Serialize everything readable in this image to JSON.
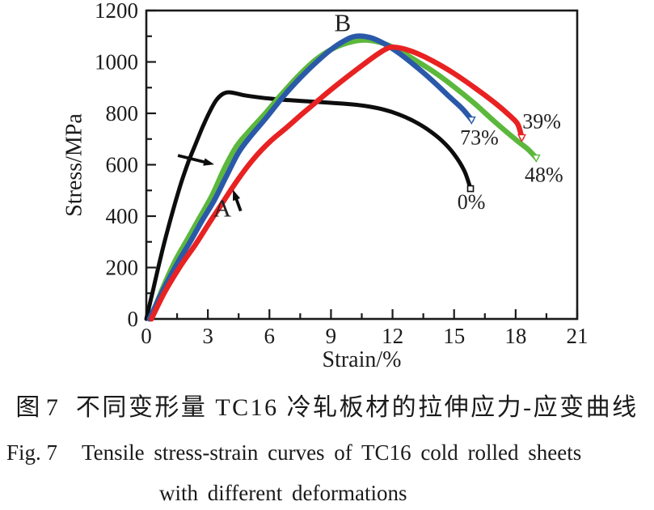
{
  "figure": {
    "caption_zh": {
      "label": "图 7",
      "text": "不同变形量 TC16 冷轧板材的拉伸应力-应变曲线"
    },
    "caption_en": {
      "label": "Fig. 7",
      "line1": "Tensile stress-strain curves of TC16 cold rolled sheets",
      "line2": "with different deformations"
    }
  },
  "colors": {
    "frame": "#1a1a1a",
    "text": "#1c1c1c",
    "black_curve": "#0d0d0d",
    "blue_curve": "#2b59a9",
    "green_curve": "#5cb83c",
    "red_curve": "#e82222"
  },
  "chart_data": {
    "type": "line",
    "title": "",
    "xlabel": "Strain/%",
    "ylabel": "Stress/MPa",
    "xlim": [
      0,
      21
    ],
    "ylim": [
      0,
      1200
    ],
    "x_ticks": [
      0,
      3,
      6,
      9,
      12,
      15,
      18,
      21
    ],
    "y_ticks": [
      0,
      200,
      400,
      600,
      800,
      1000,
      1200
    ],
    "x_minor_step": 1.5,
    "y_minor_step": 100,
    "grid": false,
    "legend": "labels at curve ends",
    "series": [
      {
        "name": "0%",
        "color": "#0d0d0d",
        "end_marker": "square",
        "points": [
          [
            0,
            0
          ],
          [
            0.35,
            120
          ],
          [
            0.7,
            240
          ],
          [
            1.05,
            350
          ],
          [
            1.4,
            450
          ],
          [
            1.7,
            530
          ],
          [
            2.05,
            611
          ],
          [
            2.4,
            680
          ],
          [
            2.75,
            748
          ],
          [
            3.1,
            808
          ],
          [
            3.4,
            850
          ],
          [
            3.7,
            874
          ],
          [
            4.0,
            882
          ],
          [
            4.4,
            877
          ],
          [
            4.8,
            870
          ],
          [
            5.5,
            862
          ],
          [
            6.2,
            856
          ],
          [
            7.0,
            851
          ],
          [
            8.0,
            846
          ],
          [
            9.0,
            841
          ],
          [
            10.0,
            835
          ],
          [
            10.8,
            827
          ],
          [
            11.6,
            814
          ],
          [
            12.3,
            796
          ],
          [
            13.0,
            771
          ],
          [
            13.7,
            738
          ],
          [
            14.4,
            694
          ],
          [
            15.0,
            641
          ],
          [
            15.5,
            576
          ],
          [
            15.8,
            507
          ]
        ]
      },
      {
        "name": "48%",
        "color": "#5cb83c",
        "end_marker": "triangle-down",
        "points": [
          [
            0.2,
            0
          ],
          [
            0.8,
            120
          ],
          [
            1.4,
            225
          ],
          [
            2.0,
            310
          ],
          [
            2.6,
            395
          ],
          [
            3.2,
            480
          ],
          [
            3.8,
            585
          ],
          [
            4.4,
            672
          ],
          [
            5.0,
            730
          ],
          [
            5.8,
            800
          ],
          [
            6.6,
            875
          ],
          [
            7.4,
            945
          ],
          [
            8.2,
            1005
          ],
          [
            9.0,
            1048
          ],
          [
            9.8,
            1074
          ],
          [
            10.6,
            1085
          ],
          [
            11.4,
            1076
          ],
          [
            12.2,
            1050
          ],
          [
            13.0,
            1012
          ],
          [
            14.0,
            962
          ],
          [
            15.0,
            903
          ],
          [
            16.0,
            838
          ],
          [
            17.0,
            766
          ],
          [
            18.0,
            698
          ],
          [
            18.6,
            660
          ],
          [
            19.0,
            627
          ]
        ]
      },
      {
        "name": "73%",
        "color": "#2b59a9",
        "end_marker": "triangle-down",
        "points": [
          [
            0.15,
            0
          ],
          [
            0.8,
            110
          ],
          [
            1.5,
            215
          ],
          [
            2.1,
            295
          ],
          [
            2.7,
            380
          ],
          [
            3.3,
            460
          ],
          [
            3.9,
            555
          ],
          [
            4.5,
            648
          ],
          [
            5.1,
            712
          ],
          [
            5.9,
            788
          ],
          [
            6.7,
            868
          ],
          [
            7.5,
            938
          ],
          [
            8.3,
            1000
          ],
          [
            9.0,
            1048
          ],
          [
            9.6,
            1080
          ],
          [
            10.2,
            1100
          ],
          [
            10.9,
            1095
          ],
          [
            11.6,
            1071
          ],
          [
            12.3,
            1035
          ],
          [
            13.1,
            985
          ],
          [
            13.9,
            930
          ],
          [
            14.7,
            870
          ],
          [
            15.4,
            818
          ],
          [
            15.85,
            775
          ]
        ]
      },
      {
        "name": "39%",
        "color": "#e82222",
        "end_marker": "triangle-down",
        "points": [
          [
            0.25,
            0
          ],
          [
            0.9,
            105
          ],
          [
            1.7,
            210
          ],
          [
            2.4,
            290
          ],
          [
            3.0,
            365
          ],
          [
            3.7,
            450
          ],
          [
            4.4,
            535
          ],
          [
            5.2,
            620
          ],
          [
            6.0,
            688
          ],
          [
            6.8,
            742
          ],
          [
            7.6,
            798
          ],
          [
            8.4,
            852
          ],
          [
            9.2,
            905
          ],
          [
            10.0,
            955
          ],
          [
            10.8,
            1003
          ],
          [
            11.4,
            1037
          ],
          [
            11.9,
            1057
          ],
          [
            12.5,
            1052
          ],
          [
            13.2,
            1033
          ],
          [
            14.0,
            1002
          ],
          [
            15.0,
            955
          ],
          [
            16.0,
            900
          ],
          [
            17.0,
            840
          ],
          [
            17.7,
            792
          ],
          [
            18.1,
            758
          ],
          [
            18.3,
            706
          ]
        ]
      }
    ],
    "annotations": {
      "labels": [
        {
          "text": "B",
          "x": 9.57,
          "y": 1153
        },
        {
          "text": "A",
          "x": 3.7,
          "y": 432
        },
        {
          "text": "73%",
          "x": 16.23,
          "y": 705
        },
        {
          "text": "39%",
          "x": 19.27,
          "y": 768
        },
        {
          "text": "48%",
          "x": 19.38,
          "y": 561
        },
        {
          "text": "0%",
          "x": 15.84,
          "y": 455
        }
      ],
      "arrows": [
        {
          "name": "arrow-right",
          "from": [
            1.54,
            636
          ],
          "to": [
            3.31,
            601
          ]
        },
        {
          "name": "arrow-up-left",
          "from": [
            4.6,
            420
          ],
          "to": [
            4.22,
            503
          ]
        }
      ]
    }
  }
}
